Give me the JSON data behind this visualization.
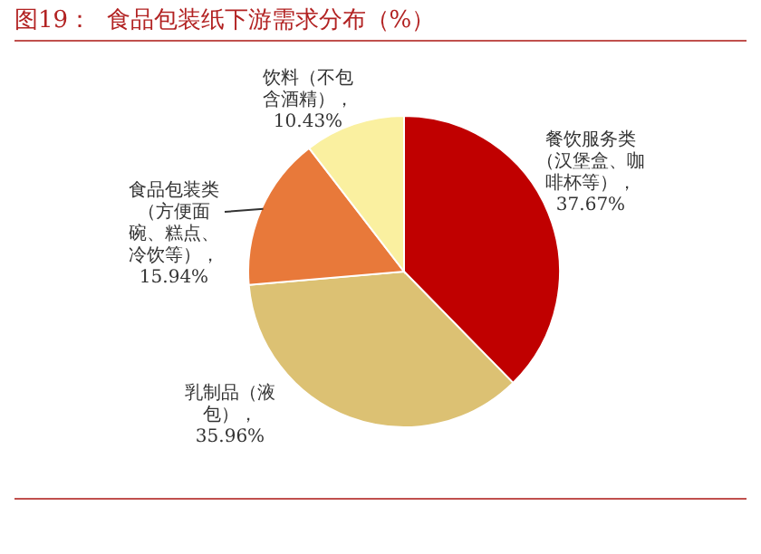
{
  "chart_data": {
    "type": "pie",
    "title": "图19：  食品包装纸下游需求分布（%）",
    "categories": [
      "餐饮服务类（汉堡盒、咖啡杯等）",
      "乳制品（液包）",
      "食品包装类（方便面碗、糕点、冷饮等）",
      "饮料（不包含酒精）"
    ],
    "values": [
      37.67,
      35.96,
      15.94,
      10.43
    ],
    "value_labels": [
      "，37.67%",
      "，35.96%",
      "，15.94%",
      "，10.43%"
    ],
    "colors": [
      "#c00000",
      "#dcc173",
      "#e8793a",
      "#faf0a0"
    ]
  }
}
